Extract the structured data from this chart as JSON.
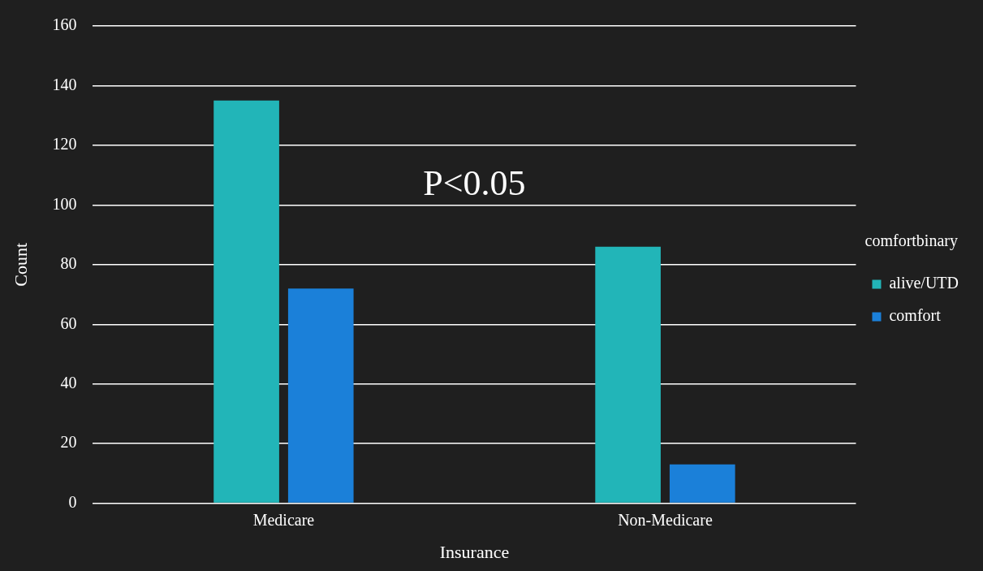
{
  "chart_data": {
    "type": "bar",
    "xlabel": "Insurance",
    "ylabel": "Count",
    "legend_title": "comfortbinary",
    "categories": [
      "Medicare",
      "Non-Medicare"
    ],
    "series": [
      {
        "name": "alive/UTD",
        "color": "#22b5b8",
        "values": [
          135,
          86
        ]
      },
      {
        "name": "comfort",
        "color": "#1b80d9",
        "values": [
          72,
          13
        ]
      }
    ],
    "ylim": [
      0,
      160
    ],
    "yticks": [
      0,
      20,
      40,
      60,
      80,
      100,
      120,
      140,
      160
    ],
    "grid": "y",
    "legend": "right",
    "annotations": [
      "P<0.05"
    ]
  }
}
